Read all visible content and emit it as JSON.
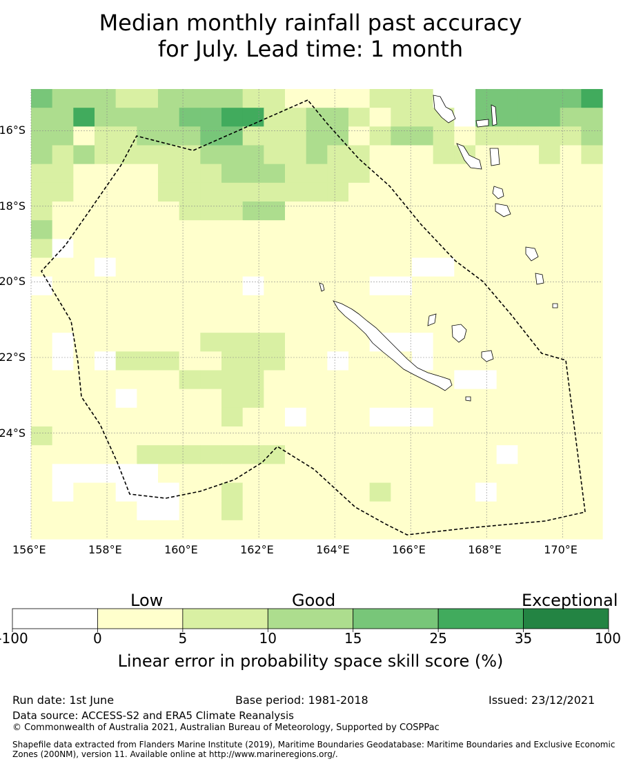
{
  "title": {
    "line1": "Median monthly rainfall past accuracy",
    "line2": "for July. Lead time: 1 month"
  },
  "map": {
    "lon_range": [
      156,
      171.05
    ],
    "lat_range": [
      -26.8,
      -14.9
    ],
    "lat_ticks": [
      {
        "value": -16,
        "label": "16°S"
      },
      {
        "value": -18,
        "label": "18°S"
      },
      {
        "value": -20,
        "label": "20°S"
      },
      {
        "value": -22,
        "label": "22°S"
      },
      {
        "value": -24,
        "label": "24°S"
      }
    ],
    "lon_ticks": [
      {
        "value": 156,
        "label": "156°E"
      },
      {
        "value": 158,
        "label": "158°E"
      },
      {
        "value": 160,
        "label": "160°E"
      },
      {
        "value": 162,
        "label": "162°E"
      },
      {
        "value": 164,
        "label": "164°E"
      },
      {
        "value": 166,
        "label": "166°E"
      },
      {
        "value": 168,
        "label": "168°E"
      },
      {
        "value": 170,
        "label": "170°E"
      }
    ],
    "gridlines": true,
    "boundary": "dashed EEZ outline"
  },
  "legend": {
    "categories": [
      "Low",
      "Good",
      "Exceptional"
    ],
    "boundaries": [
      "-100",
      "0",
      "5",
      "10",
      "15",
      "25",
      "35",
      "100"
    ],
    "colors": [
      "#ffffff",
      "#ffffcc",
      "#d9f0a3",
      "#addd8e",
      "#78c679",
      "#41ab5d",
      "#238443"
    ],
    "title": "Linear error in probability space skill score (%)"
  },
  "footer": {
    "run_date": "Run date: 1st June",
    "base_period": "Base period: 1981-2018",
    "issued": "Issued: 23/12/2021",
    "data_source": "Data source: ACCESS-S2 and ERA5 Climate Reanalysis",
    "copyright": "© Commonwealth of Australia 2021, Australian Bureau of Meteorology, Supported by COSPPac",
    "shapefile": "Shapefile data extracted from Flanders Marine Institute (2019), Maritime Boundaries Geodatabase: Maritime Boundaries and Exclusive Economic Zones (200NM), version 11. Available online at http://www.marineregions.org/."
  }
}
